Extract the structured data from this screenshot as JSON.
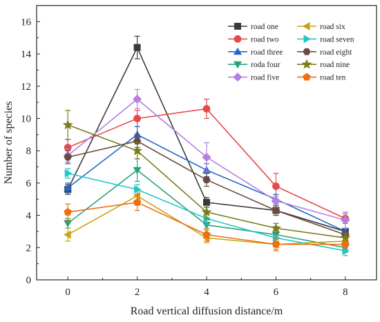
{
  "chart_data": {
    "type": "line",
    "title": "",
    "xlabel": "Road vertical diffusion distance/m",
    "ylabel": "Number of species",
    "x": [
      0,
      2,
      4,
      6,
      8
    ],
    "x_ticks": [
      "0",
      "2",
      "4",
      "6",
      "8"
    ],
    "y_ticks": [
      "0",
      "2",
      "4",
      "6",
      "8",
      "10",
      "12",
      "14",
      "16"
    ],
    "xlim": [
      -0.9,
      8.9
    ],
    "ylim": [
      0,
      17
    ],
    "grid": false,
    "legend_position": "top-right",
    "series": [
      {
        "name": "road one",
        "color": "#3a3a3a",
        "marker": "square",
        "values": [
          5.6,
          14.4,
          4.8,
          4.3,
          3.0
        ],
        "errors": [
          0.3,
          0.7,
          0.3,
          0.3,
          0.2
        ]
      },
      {
        "name": "road two",
        "color": "#e8484b",
        "marker": "circle",
        "values": [
          8.2,
          10.0,
          10.6,
          5.8,
          3.8
        ],
        "errors": [
          0.5,
          0.5,
          0.6,
          0.8,
          0.3
        ]
      },
      {
        "name": "road three",
        "color": "#2368c8",
        "marker": "triangle-up",
        "values": [
          5.7,
          9.0,
          6.8,
          5.0,
          3.0
        ],
        "errors": [
          0.3,
          0.5,
          0.4,
          0.3,
          0.2
        ]
      },
      {
        "name": "roda four",
        "color": "#2aa37a",
        "marker": "triangle-down",
        "values": [
          3.5,
          6.8,
          3.4,
          2.8,
          2.0
        ],
        "errors": [
          0.3,
          0.7,
          0.3,
          0.3,
          0.3
        ]
      },
      {
        "name": "road five",
        "color": "#b67fe0",
        "marker": "diamond",
        "values": [
          7.7,
          11.2,
          7.6,
          4.9,
          3.7
        ],
        "errors": [
          0.4,
          0.6,
          0.9,
          0.3,
          0.5
        ]
      },
      {
        "name": "road six",
        "color": "#c9a215",
        "marker": "triangle-left",
        "values": [
          2.8,
          5.2,
          2.6,
          2.2,
          2.4
        ],
        "errors": [
          0.4,
          0.3,
          0.3,
          0.3,
          0.3
        ]
      },
      {
        "name": "road seven",
        "color": "#23c6c6",
        "marker": "triangle-right",
        "values": [
          6.6,
          5.6,
          3.8,
          2.6,
          1.8
        ],
        "errors": [
          0.3,
          0.3,
          0.4,
          0.3,
          0.3
        ]
      },
      {
        "name": "road eight",
        "color": "#6b4a3f",
        "marker": "hexagon",
        "values": [
          7.6,
          8.6,
          6.2,
          4.3,
          2.8
        ],
        "errors": [
          0.4,
          0.4,
          0.4,
          0.3,
          0.2
        ]
      },
      {
        "name": "road nine",
        "color": "#7a7a1e",
        "marker": "star",
        "values": [
          9.6,
          8.0,
          4.2,
          3.2,
          2.6
        ],
        "errors": [
          0.9,
          0.5,
          0.4,
          0.3,
          0.3
        ]
      },
      {
        "name": "road ten",
        "color": "#ee6e10",
        "marker": "pentagon",
        "values": [
          4.2,
          4.8,
          2.8,
          2.2,
          2.2
        ],
        "errors": [
          0.5,
          0.5,
          0.4,
          0.4,
          0.3
        ]
      }
    ]
  }
}
